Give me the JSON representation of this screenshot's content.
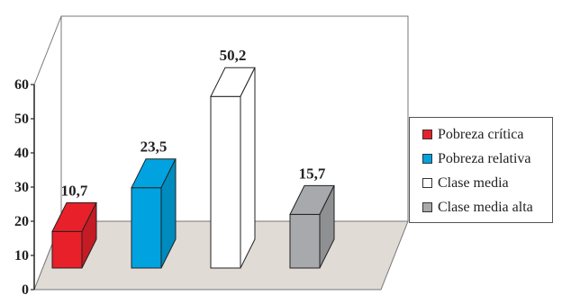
{
  "chart_data": {
    "type": "bar",
    "categories": [
      "Pobreza crítica",
      "Pobreza relativa",
      "Clase media",
      "Clase media alta"
    ],
    "values": [
      10.7,
      23.5,
      50.2,
      15.7
    ],
    "value_labels": [
      "10,7",
      "23,5",
      "50,2",
      "15,7"
    ],
    "colors": [
      "#e8202a",
      "#00a3e0",
      "#ffffff",
      "#a7a9ac"
    ],
    "ylim": [
      0,
      60
    ],
    "yticks": [
      "0",
      "10",
      "20",
      "30",
      "40",
      "50",
      "60"
    ],
    "title": "",
    "xlabel": "",
    "ylabel": "",
    "legend_position": "right",
    "grid": false,
    "floor_color": "#e1dbd6"
  },
  "legend": {
    "items": [
      {
        "label": "Pobreza crítica",
        "color": "#e8202a"
      },
      {
        "label": "Pobreza relativa",
        "color": "#00a3e0"
      },
      {
        "label": "Clase media",
        "color": "#ffffff"
      },
      {
        "label": "Clase media alta",
        "color": "#a7a9ac"
      }
    ]
  }
}
